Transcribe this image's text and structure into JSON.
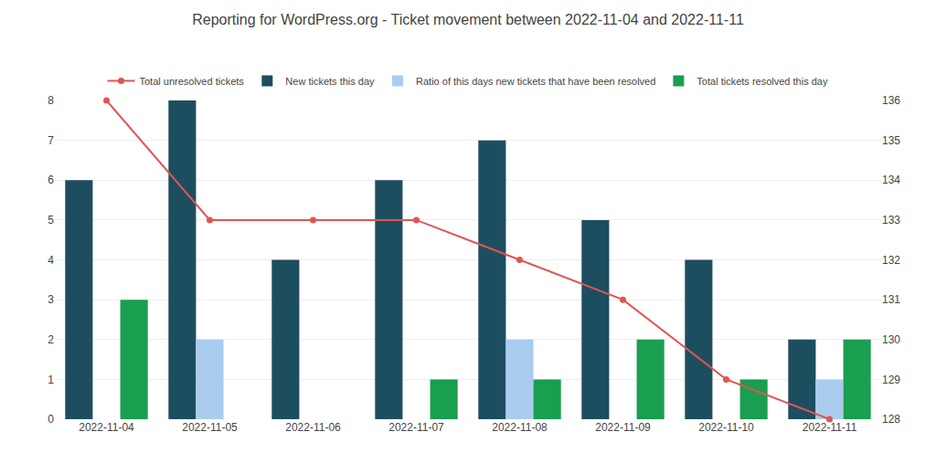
{
  "chart_data": {
    "type": "bar",
    "title": "Reporting for WordPress.org - Ticket movement between 2022-11-04 and 2022-11-11",
    "categories": [
      "2022-11-04",
      "2022-11-05",
      "2022-11-06",
      "2022-11-07",
      "2022-11-08",
      "2022-11-09",
      "2022-11-10",
      "2022-11-11"
    ],
    "series": [
      {
        "name": "Total unresolved tickets",
        "type": "line",
        "axis": "y2",
        "color": "#e05555",
        "marker": "o",
        "line_style": "solid",
        "values": [
          136,
          133,
          133,
          133,
          132,
          131,
          129,
          128
        ]
      },
      {
        "name": "New tickets this day",
        "color": "#1d4e5f",
        "values": [
          6,
          8,
          4,
          6,
          7,
          5,
          4,
          2
        ]
      },
      {
        "name": "Ratio of this days new tickets that have been resolved",
        "color": "#aaccee",
        "values": [
          0,
          2,
          0,
          0,
          2,
          0,
          0,
          1
        ]
      },
      {
        "name": "Total tickets resolved this day",
        "color": "#1a9e50",
        "values": [
          3,
          0,
          0,
          1,
          1,
          2,
          1,
          2
        ]
      }
    ],
    "ylim": [
      0,
      8
    ],
    "yticks": [
      0,
      1,
      2,
      3,
      4,
      5,
      6,
      7,
      8
    ],
    "y2lim": [
      128,
      136
    ],
    "y2ticks": [
      128,
      129,
      130,
      131,
      132,
      133,
      134,
      135,
      136
    ],
    "grid": true,
    "legend": "top"
  }
}
